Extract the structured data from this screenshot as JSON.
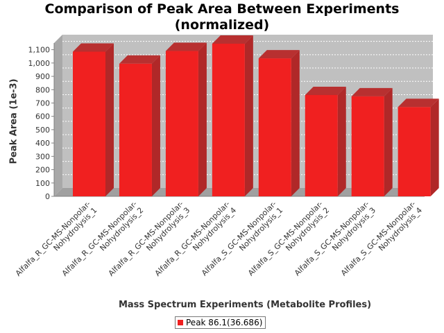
{
  "chart_data": {
    "type": "bar",
    "title": "Comparison of Peak Area Between Experiments (normalized)",
    "xlabel": "Mass Spectrum Experiments (Metabolite Profiles)",
    "ylabel": "Peak Area (1e-3)",
    "ylim": [
      0,
      1150
    ],
    "yticks": [
      0,
      100,
      200,
      300,
      400,
      500,
      600,
      700,
      800,
      900,
      1000,
      1100
    ],
    "ytick_labels": [
      "0",
      "100",
      "200",
      "300",
      "400",
      "500",
      "600",
      "700",
      "800",
      "900",
      "1,000",
      "1,100"
    ],
    "grid": true,
    "legend_position": "bottom",
    "categories": [
      [
        "Alfalfa_R_GC-MS-Nonpolar-",
        "Nohydrolysis_1"
      ],
      [
        "Alfalfa_R_GC-MS-Nonpolar-",
        "Nohydrolysis_2"
      ],
      [
        "Alfalfa_R_GC-MS-Nonpolar-",
        "Nohydrolysis_3"
      ],
      [
        "Alfalfa_R_GC-MS-Nonpolar-",
        "Nohydrolysis_4"
      ],
      [
        "Alfalfa_S_GC-MS-Nonpolar-",
        "Nohydrolysis_1"
      ],
      [
        "Alfalfa_S_GC-MS-Nonpolar-",
        "Nohydrolysis_2"
      ],
      [
        "Alfalfa_S_GC-MS-Nonpolar-",
        "Nohydrolysis_3"
      ],
      [
        "Alfalfa_S_GC-MS-Nonpolar-",
        "Nohydrolysis_4"
      ]
    ],
    "series": [
      {
        "name": "Peak 86.1(36.686)",
        "color": "#f02020",
        "values": [
          1085,
          995,
          1090,
          1145,
          1035,
          760,
          750,
          670
        ]
      }
    ]
  },
  "title_lines": [
    "Comparison of Peak Area Between Experiments",
    "(normalized)"
  ],
  "legend_label": "Peak 86.1(36.686)"
}
